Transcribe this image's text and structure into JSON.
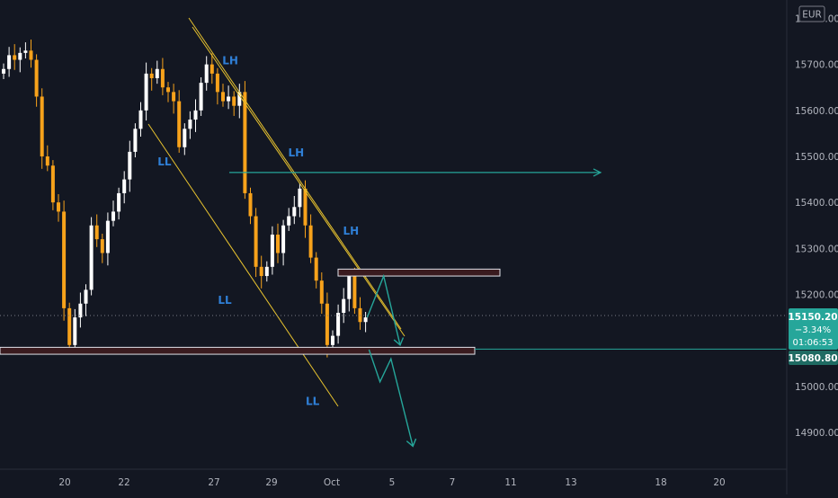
{
  "currency": "EUR",
  "colors": {
    "background": "#131722",
    "up_candle": "#ffffff",
    "down_candle": "#f7a21b",
    "trendline": "#e8c32f",
    "projection": "#26a69a",
    "zone_fill": "#3a1b1f",
    "zone_border": "#e0e3eb",
    "price_tag_bg": "#26a69a"
  },
  "price_axis": {
    "ticks": [
      "15800.00",
      "15700.00",
      "15600.00",
      "15500.00",
      "15400.00",
      "15300.00",
      "15200.00",
      "15100.00",
      "15000.00",
      "14900.00"
    ]
  },
  "time_axis": {
    "ticks": [
      "20",
      "22",
      "27",
      "29",
      "Oct",
      "5",
      "7",
      "11",
      "13",
      "18",
      "20"
    ]
  },
  "price_tag": {
    "price": "15150.20",
    "change": "−3.34%",
    "countdown": "01:06:53"
  },
  "level_tag": {
    "price": "15080.80"
  },
  "annotations": [
    {
      "text": "LH",
      "price": 15700,
      "bar": 41
    },
    {
      "text": "LH",
      "price": 15500,
      "bar": 53
    },
    {
      "text": "LH",
      "price": 15330,
      "bar": 63
    },
    {
      "text": "LL",
      "price": 15480,
      "bar": 29
    },
    {
      "text": "LL",
      "price": 15180,
      "bar": 40
    },
    {
      "text": "LL",
      "price": 14960,
      "bar": 56
    }
  ],
  "chart_data": {
    "type": "candlestick",
    "ylim": [
      14820,
      15840
    ],
    "series_open_close": [
      [
        15680,
        15690
      ],
      [
        15690,
        15720
      ],
      [
        15720,
        15710
      ],
      [
        15710,
        15725
      ],
      [
        15725,
        15730
      ],
      [
        15730,
        15710
      ],
      [
        15710,
        15630
      ],
      [
        15630,
        15500
      ],
      [
        15500,
        15480
      ],
      [
        15480,
        15400
      ],
      [
        15400,
        15380
      ],
      [
        15380,
        15170
      ],
      [
        15170,
        15090
      ],
      [
        15090,
        15150
      ],
      [
        15150,
        15180
      ],
      [
        15180,
        15210
      ],
      [
        15210,
        15350
      ],
      [
        15350,
        15320
      ],
      [
        15320,
        15290
      ],
      [
        15290,
        15360
      ],
      [
        15360,
        15380
      ],
      [
        15380,
        15420
      ],
      [
        15420,
        15450
      ],
      [
        15450,
        15510
      ],
      [
        15510,
        15560
      ],
      [
        15560,
        15600
      ],
      [
        15600,
        15680
      ],
      [
        15680,
        15670
      ],
      [
        15670,
        15690
      ],
      [
        15690,
        15650
      ],
      [
        15650,
        15640
      ],
      [
        15640,
        15620
      ],
      [
        15620,
        15520
      ],
      [
        15520,
        15560
      ],
      [
        15560,
        15580
      ],
      [
        15580,
        15600
      ],
      [
        15600,
        15660
      ],
      [
        15660,
        15700
      ],
      [
        15700,
        15680
      ],
      [
        15680,
        15640
      ],
      [
        15640,
        15620
      ],
      [
        15620,
        15630
      ],
      [
        15630,
        15610
      ],
      [
        15610,
        15640
      ],
      [
        15640,
        15420
      ],
      [
        15420,
        15370
      ],
      [
        15370,
        15260
      ],
      [
        15260,
        15240
      ],
      [
        15240,
        15260
      ],
      [
        15260,
        15330
      ],
      [
        15330,
        15290
      ],
      [
        15290,
        15350
      ],
      [
        15350,
        15370
      ],
      [
        15370,
        15390
      ],
      [
        15390,
        15430
      ],
      [
        15430,
        15350
      ],
      [
        15350,
        15280
      ],
      [
        15280,
        15230
      ],
      [
        15230,
        15180
      ],
      [
        15180,
        15090
      ],
      [
        15090,
        15110
      ],
      [
        15110,
        15160
      ],
      [
        15160,
        15190
      ],
      [
        15190,
        15240
      ],
      [
        15240,
        15170
      ],
      [
        15170,
        15140
      ],
      [
        15140,
        15150
      ]
    ],
    "projections": [
      {
        "name": "",
        "points": [
          [
            64,
            15150
          ],
          [
            67,
            15240
          ],
          [
            70,
            15090
          ]
        ]
      },
      {
        "name": "",
        "points": [
          [
            64,
            15080
          ],
          [
            66,
            15010
          ],
          [
            68,
            15060
          ],
          [
            72,
            14870
          ]
        ]
      }
    ],
    "resistance_zone": {
      "from": 15240,
      "to": 15255
    },
    "support_zone": {
      "from": 15070,
      "to": 15085
    },
    "horizontal_level": 15465
  }
}
